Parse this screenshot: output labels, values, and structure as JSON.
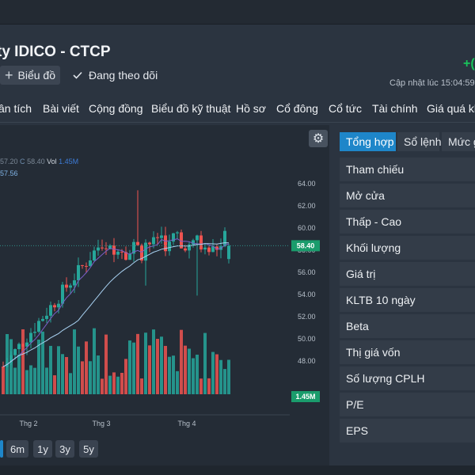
{
  "header": {
    "company": "ty IDICO - CTCP",
    "change": "+(",
    "chart_button": "Biểu đồ",
    "follow": "Đang theo dõi",
    "updated": "Cập nhật lúc  15:04:59"
  },
  "nav": [
    "ân tích",
    "Bài viết",
    "Cộng đồng",
    "Biểu đồ kỹ thuật",
    "Hồ sơ",
    "Cổ đông",
    "Cổ tức",
    "Tài chính",
    "Giá quá kh"
  ],
  "chart": {
    "legend_line1_dim": "57.20",
    "legend_c": "C",
    "legend_close": "58.40",
    "legend_vol_label": "Vol",
    "legend_vol": "1.45M",
    "legend_line2": "57.56",
    "price_badge": "58.40",
    "volume_badge": "1.45M",
    "ranges": [
      "6m",
      "1y",
      "3y",
      "5y"
    ]
  },
  "chart_data": {
    "type": "candlestick",
    "y_ticks": [
      "64.00",
      "62.00",
      "60.00",
      "58.00",
      "56.00",
      "54.00",
      "52.00",
      "50.00",
      "48.00"
    ],
    "x_ticks": [
      "Thg 2",
      "Thg 3",
      "Thg 4"
    ],
    "ylim": [
      47,
      65
    ],
    "last_close": 58.4,
    "last_volume": "1.45M"
  },
  "right_panel": {
    "tabs": [
      "Tổng hợp",
      "Sổ lệnh",
      "Mức g"
    ],
    "rows": [
      "Tham chiếu",
      "Mở cửa",
      "Thấp - Cao",
      "Khối lượng",
      "Giá trị",
      "KLTB 10 ngày",
      "Beta",
      "Thị giá vốn",
      "Số lượng CPLH",
      "P/E",
      "EPS"
    ]
  },
  "colors": {
    "up": "#26a69a",
    "down": "#ef5350",
    "accent": "#1e86c9",
    "positive_text": "#19c45b"
  }
}
